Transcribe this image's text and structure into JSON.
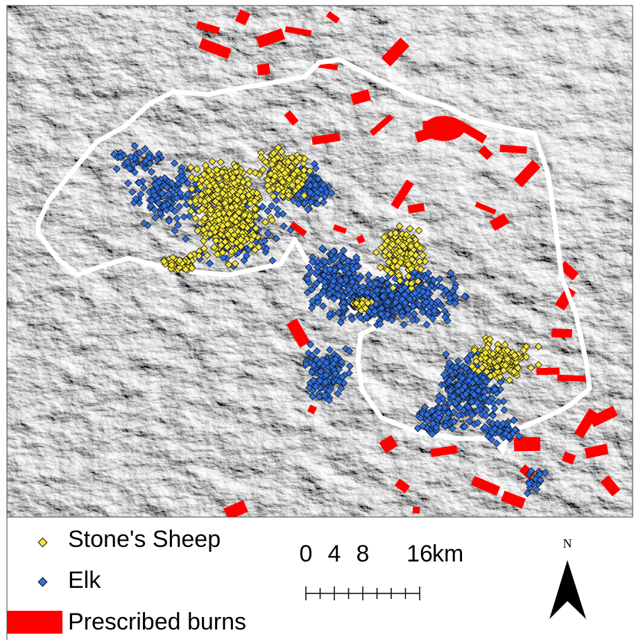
{
  "legend": {
    "items": [
      {
        "label": "Stone's Sheep",
        "color": "#f2e33a"
      },
      {
        "label": "Elk",
        "color": "#2f6fe0"
      },
      {
        "label": "Prescribed burns",
        "color": "#ff0000"
      }
    ]
  },
  "scale": {
    "ticks": [
      0,
      4,
      8,
      16
    ],
    "unit": "km"
  },
  "north": "N"
}
